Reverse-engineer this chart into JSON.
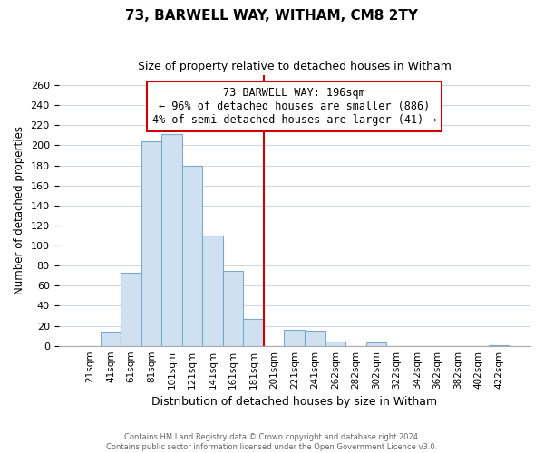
{
  "title": "73, BARWELL WAY, WITHAM, CM8 2TY",
  "subtitle": "Size of property relative to detached houses in Witham",
  "xlabel": "Distribution of detached houses by size in Witham",
  "ylabel": "Number of detached properties",
  "bin_labels": [
    "21sqm",
    "41sqm",
    "61sqm",
    "81sqm",
    "101sqm",
    "121sqm",
    "141sqm",
    "161sqm",
    "181sqm",
    "201sqm",
    "221sqm",
    "241sqm",
    "262sqm",
    "282sqm",
    "302sqm",
    "322sqm",
    "342sqm",
    "362sqm",
    "382sqm",
    "402sqm",
    "422sqm"
  ],
  "bar_values": [
    0,
    14,
    73,
    204,
    211,
    180,
    110,
    75,
    27,
    0,
    16,
    15,
    4,
    0,
    3,
    0,
    0,
    0,
    0,
    0,
    1
  ],
  "bar_color": "#cfe0f0",
  "bar_edge_color": "#7aaac8",
  "vline_color": "#cc0000",
  "annotation_line1": "73 BARWELL WAY: 196sqm",
  "annotation_line2": "← 96% of detached houses are smaller (886)",
  "annotation_line3": "4% of semi-detached houses are larger (41) →",
  "annotation_box_color": "#ffffff",
  "annotation_box_edge": "#cc0000",
  "ylim": [
    0,
    270
  ],
  "yticks": [
    0,
    20,
    40,
    60,
    80,
    100,
    120,
    140,
    160,
    180,
    200,
    220,
    240,
    260
  ],
  "footer1": "Contains HM Land Registry data © Crown copyright and database right 2024.",
  "footer2": "Contains public sector information licensed under the Open Government Licence v3.0.",
  "background_color": "#ffffff",
  "grid_color": "#d0d8e8"
}
